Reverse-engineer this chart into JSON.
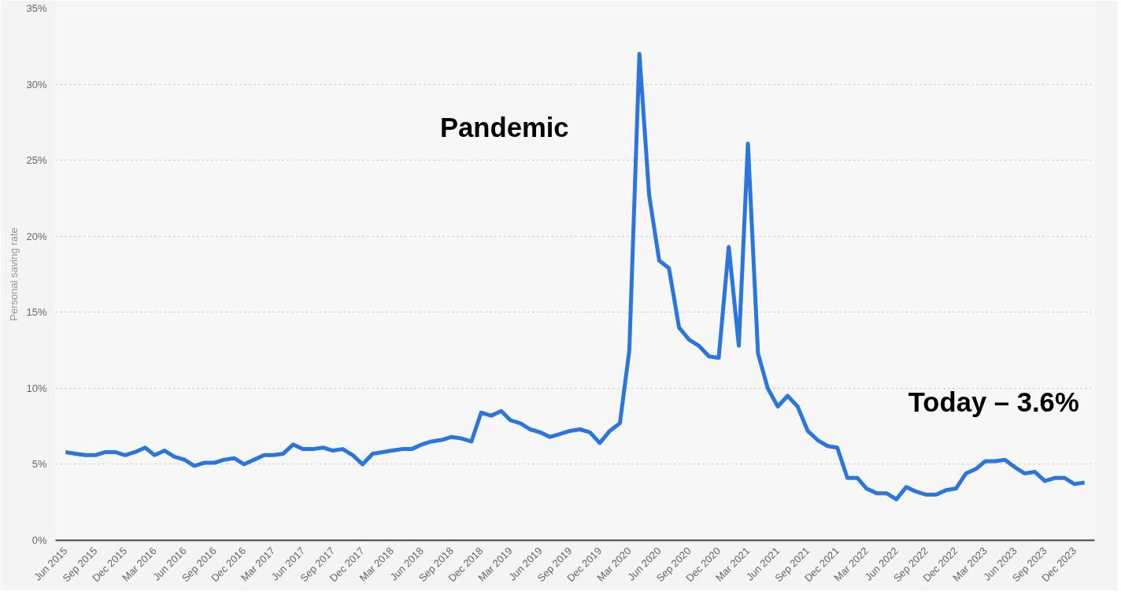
{
  "chart_data": {
    "type": "line",
    "ylabel": "Personal saving rate",
    "x": [
      "2015-06",
      "2015-07",
      "2015-08",
      "2015-09",
      "2015-10",
      "2015-11",
      "2015-12",
      "2016-01",
      "2016-02",
      "2016-03",
      "2016-04",
      "2016-05",
      "2016-06",
      "2016-07",
      "2016-08",
      "2016-09",
      "2016-10",
      "2016-11",
      "2016-12",
      "2017-01",
      "2017-02",
      "2017-03",
      "2017-04",
      "2017-05",
      "2017-06",
      "2017-07",
      "2017-08",
      "2017-09",
      "2017-10",
      "2017-11",
      "2017-12",
      "2018-01",
      "2018-02",
      "2018-03",
      "2018-04",
      "2018-05",
      "2018-06",
      "2018-07",
      "2018-08",
      "2018-09",
      "2018-10",
      "2018-11",
      "2018-12",
      "2019-01",
      "2019-02",
      "2019-03",
      "2019-04",
      "2019-05",
      "2019-06",
      "2019-07",
      "2019-08",
      "2019-09",
      "2019-10",
      "2019-11",
      "2019-12",
      "2020-01",
      "2020-02",
      "2020-03",
      "2020-04",
      "2020-05",
      "2020-06",
      "2020-07",
      "2020-08",
      "2020-09",
      "2020-10",
      "2020-11",
      "2020-12",
      "2021-01",
      "2021-02",
      "2021-03",
      "2021-04",
      "2021-05",
      "2021-06",
      "2021-07",
      "2021-08",
      "2021-09",
      "2021-10",
      "2021-11",
      "2021-12",
      "2022-01",
      "2022-02",
      "2022-03",
      "2022-04",
      "2022-05",
      "2022-06",
      "2022-07",
      "2022-08",
      "2022-09",
      "2022-10",
      "2022-11",
      "2022-12",
      "2023-01",
      "2023-02",
      "2023-03",
      "2023-04",
      "2023-05",
      "2023-06",
      "2023-07",
      "2023-08",
      "2023-09",
      "2023-10",
      "2023-11",
      "2023-12",
      "2024-01"
    ],
    "series": [
      {
        "color": "#2a75de",
        "values": [
          5.8,
          5.7,
          5.6,
          5.6,
          5.8,
          5.8,
          5.6,
          5.8,
          6.1,
          5.6,
          5.9,
          5.5,
          5.3,
          4.9,
          5.1,
          5.1,
          5.3,
          5.4,
          5.0,
          5.3,
          5.6,
          5.6,
          5.7,
          6.3,
          6.0,
          6.0,
          6.1,
          5.9,
          6.0,
          5.6,
          5.0,
          5.7,
          5.8,
          5.9,
          6.0,
          6.0,
          6.3,
          6.5,
          6.6,
          6.8,
          6.7,
          6.5,
          8.4,
          8.2,
          8.5,
          7.9,
          7.7,
          7.3,
          7.1,
          6.8,
          7.0,
          7.2,
          7.3,
          7.1,
          6.4,
          7.2,
          7.7,
          12.5,
          32.0,
          22.7,
          18.4,
          17.9,
          14.0,
          13.2,
          12.8,
          12.1,
          12.0,
          19.3,
          12.8,
          26.1,
          12.3,
          10.0,
          8.8,
          9.5,
          8.8,
          7.2,
          6.6,
          6.2,
          6.1,
          4.1,
          4.1,
          3.4,
          3.1,
          3.1,
          2.7,
          3.5,
          3.2,
          3.0,
          3.0,
          3.3,
          3.4,
          4.4,
          4.7,
          5.2,
          5.2,
          5.3,
          4.8,
          4.4,
          4.5,
          3.9,
          4.1,
          4.1,
          3.7,
          3.8
        ]
      }
    ],
    "xlim": [
      "2015-05",
      "2024-02"
    ],
    "xticks": [
      {
        "value": "2015-06",
        "label": "Jun 2015"
      },
      {
        "value": "2015-09",
        "label": "Sep 2015"
      },
      {
        "value": "2015-12",
        "label": "Dec 2015"
      },
      {
        "value": "2016-03",
        "label": "Mar 2016"
      },
      {
        "value": "2016-06",
        "label": "Jun 2016"
      },
      {
        "value": "2016-09",
        "label": "Sep 2016"
      },
      {
        "value": "2016-12",
        "label": "Dec 2016"
      },
      {
        "value": "2017-03",
        "label": "Mar 2017"
      },
      {
        "value": "2017-06",
        "label": "Jun 2017"
      },
      {
        "value": "2017-09",
        "label": "Sep 2017"
      },
      {
        "value": "2017-12",
        "label": "Dec 2017"
      },
      {
        "value": "2018-03",
        "label": "Mar 2018"
      },
      {
        "value": "2018-06",
        "label": "Jun 2018"
      },
      {
        "value": "2018-09",
        "label": "Sep 2018"
      },
      {
        "value": "2018-12",
        "label": "Dec 2018"
      },
      {
        "value": "2019-03",
        "label": "Mar 2019"
      },
      {
        "value": "2019-06",
        "label": "Jun 2019"
      },
      {
        "value": "2019-09",
        "label": "Sep 2019"
      },
      {
        "value": "2019-12",
        "label": "Dec 2019"
      },
      {
        "value": "2020-03",
        "label": "Mar 2020"
      },
      {
        "value": "2020-06",
        "label": "Jun 2020"
      },
      {
        "value": "2020-09",
        "label": "Sep 2020"
      },
      {
        "value": "2020-12",
        "label": "Dec 2020"
      },
      {
        "value": "2021-03",
        "label": "Mar 2021"
      },
      {
        "value": "2021-06",
        "label": "Jun 2021"
      },
      {
        "value": "2021-09",
        "label": "Sep 2021"
      },
      {
        "value": "2021-12",
        "label": "Dec 2021"
      },
      {
        "value": "2022-03",
        "label": "Mar 2022"
      },
      {
        "value": "2022-06",
        "label": "Jun 2022"
      },
      {
        "value": "2022-09",
        "label": "Sep 2022"
      },
      {
        "value": "2022-12",
        "label": "Dec 2022"
      },
      {
        "value": "2023-03",
        "label": "Mar 2023"
      },
      {
        "value": "2023-06",
        "label": "Jun 2023"
      },
      {
        "value": "2023-09",
        "label": "Sep 2023"
      },
      {
        "value": "2023-12",
        "label": "Dec 2023"
      }
    ],
    "ylim": [
      0,
      35
    ],
    "yticks": [
      {
        "value": 0,
        "label": "0%"
      },
      {
        "value": 5,
        "label": "5%"
      },
      {
        "value": 10,
        "label": "10%"
      },
      {
        "value": 15,
        "label": "15%"
      },
      {
        "value": 20,
        "label": "20%"
      },
      {
        "value": 25,
        "label": "25%"
      },
      {
        "value": 30,
        "label": "30%"
      },
      {
        "value": 35,
        "label": "35%"
      }
    ],
    "grid": "y",
    "line_style": "solid",
    "annotations": [
      "Pandemic",
      "Today – 3.6%"
    ]
  }
}
